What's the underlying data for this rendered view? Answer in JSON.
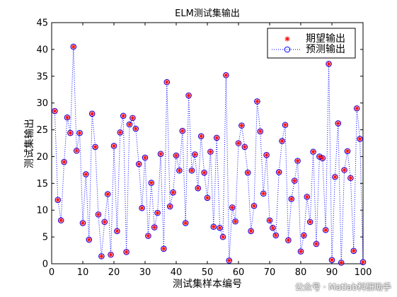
{
  "chart_data": {
    "type": "line",
    "title": "ELM测试集输出",
    "xlabel": "测试集样本编号",
    "ylabel": "测试集输出",
    "xlim": [
      0,
      100
    ],
    "ylim": [
      0,
      45
    ],
    "xticks": [
      0,
      10,
      20,
      30,
      40,
      50,
      60,
      70,
      80,
      90,
      100
    ],
    "yticks": [
      0,
      5,
      10,
      15,
      20,
      25,
      30,
      35,
      40,
      45
    ],
    "grid": false,
    "legend_position": "top-right",
    "x": [
      1,
      2,
      3,
      4,
      5,
      6,
      7,
      8,
      9,
      10,
      11,
      12,
      13,
      14,
      15,
      16,
      17,
      18,
      19,
      20,
      21,
      22,
      23,
      24,
      25,
      26,
      27,
      28,
      29,
      30,
      31,
      32,
      33,
      34,
      35,
      36,
      37,
      38,
      39,
      40,
      41,
      42,
      43,
      44,
      45,
      46,
      47,
      48,
      49,
      50,
      51,
      52,
      53,
      54,
      55,
      56,
      57,
      58,
      59,
      60,
      61,
      62,
      63,
      64,
      65,
      66,
      67,
      68,
      69,
      70,
      71,
      72,
      73,
      74,
      75,
      76,
      77,
      78,
      79,
      80,
      81,
      82,
      83,
      84,
      85,
      86,
      87,
      88,
      89,
      90,
      91,
      92,
      93,
      94,
      95,
      96,
      97,
      98,
      99,
      100
    ],
    "series": [
      {
        "name": "期望输出",
        "marker": "asterisk",
        "color": "#ff0000",
        "line": "none",
        "values": [
          28.5,
          11.9,
          8.1,
          19,
          27.3,
          24.4,
          40.5,
          21.1,
          24.4,
          7.6,
          16.7,
          4.5,
          28,
          21.8,
          9.2,
          1.4,
          7.8,
          13,
          1.7,
          22,
          6.1,
          24.5,
          27.6,
          2.2,
          26,
          27.2,
          25.2,
          18.6,
          10.4,
          19.8,
          5.2,
          15.1,
          6.8,
          9.5,
          20.5,
          2.8,
          33.9,
          10.7,
          13.3,
          20.2,
          17.4,
          24.8,
          7.6,
          31.4,
          17.4,
          20.4,
          14.1,
          23.8,
          17,
          12.3,
          20.9,
          6.9,
          23.5,
          6.7,
          5,
          35.2,
          0.6,
          10.5,
          7.9,
          22.5,
          25.8,
          21.8,
          17,
          6.1,
          10.8,
          30.3,
          24.7,
          13.1,
          20.3,
          8.1,
          6.7,
          5.3,
          17.1,
          22.9,
          25.9,
          4.4,
          12.1,
          15.5,
          19.2,
          2.3,
          5.3,
          12.5,
          7.8,
          20.9,
          3.7,
          20,
          19.7,
          6.3,
          37.3,
          0.7,
          16.2,
          26.2,
          0.2,
          17.5,
          21,
          16,
          2.4,
          29,
          23.3,
          0.3
        ]
      },
      {
        "name": "预测输出",
        "marker": "circle",
        "color": "#0000ff",
        "line": "dotted",
        "values": [
          28.5,
          11.9,
          8.1,
          19,
          27.3,
          24.4,
          40.5,
          21.1,
          24.4,
          7.6,
          16.7,
          4.5,
          28,
          21.8,
          9.2,
          1.4,
          7.8,
          13,
          1.7,
          22,
          6.1,
          24.5,
          27.6,
          2.2,
          26,
          27.2,
          25.2,
          18.6,
          10.4,
          19.8,
          5.2,
          15.1,
          6.8,
          9.5,
          20.5,
          2.8,
          33.9,
          10.7,
          13.3,
          20.2,
          17.4,
          24.8,
          7.6,
          31.4,
          17.4,
          20.4,
          14.1,
          23.8,
          17,
          12.3,
          20.9,
          6.9,
          23.5,
          6.7,
          5,
          35.2,
          0.6,
          10.5,
          7.9,
          22.5,
          25.8,
          21.8,
          17,
          6.1,
          10.8,
          30.3,
          24.7,
          13.1,
          20.3,
          8.1,
          6.7,
          5.3,
          17.1,
          22.9,
          25.9,
          4.4,
          12.1,
          15.5,
          19.2,
          2.3,
          5.3,
          12.5,
          7.8,
          20.9,
          3.7,
          20,
          19.7,
          6.3,
          37.3,
          0.7,
          16.2,
          26.2,
          0.2,
          17.5,
          21,
          16,
          2.4,
          29,
          23.3,
          0.3
        ]
      }
    ]
  },
  "watermark": {
    "text": "公众号 · Matlab科研助手"
  }
}
